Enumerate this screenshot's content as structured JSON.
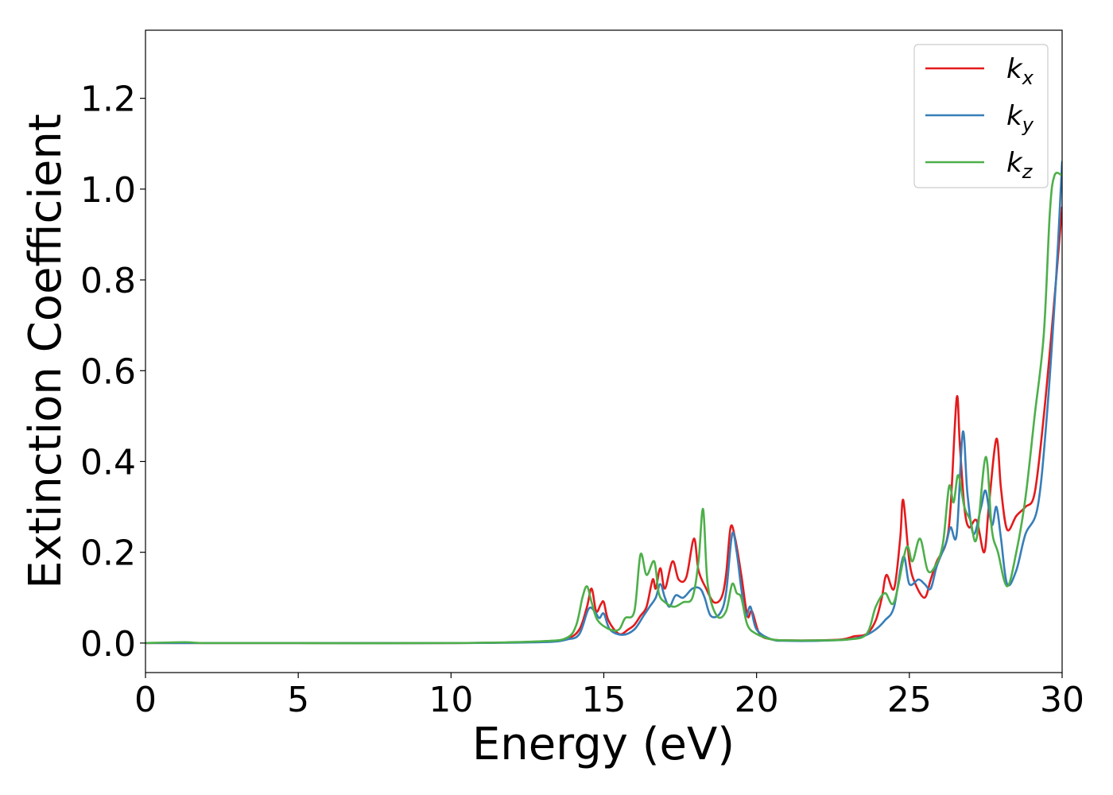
{
  "chart_data": {
    "type": "line",
    "title": "",
    "xlabel": "Energy (eV)",
    "ylabel": "Extinction Coefficient",
    "xlim": [
      0,
      30
    ],
    "ylim": [
      -0.065,
      1.35
    ],
    "xticks": [
      0,
      5,
      10,
      15,
      20,
      25,
      30
    ],
    "xtick_labels": [
      "0",
      "5",
      "10",
      "15",
      "20",
      "25",
      "30"
    ],
    "yticks": [
      0.0,
      0.2,
      0.4,
      0.6,
      0.8,
      1.0,
      1.2
    ],
    "ytick_labels": [
      "0.0",
      "0.2",
      "0.4",
      "0.6",
      "0.8",
      "1.0",
      "1.2"
    ],
    "grid": false,
    "legend_position": "top-right",
    "series": [
      {
        "name": "k",
        "subscript": "x",
        "color": "#e41a1c",
        "points": [
          [
            0,
            0
          ],
          [
            5,
            0
          ],
          [
            10,
            0
          ],
          [
            13,
            0.003
          ],
          [
            13.8,
            0.01
          ],
          [
            14.2,
            0.03
          ],
          [
            14.45,
            0.08
          ],
          [
            14.6,
            0.12
          ],
          [
            14.75,
            0.07
          ],
          [
            14.9,
            0.085
          ],
          [
            15.0,
            0.09
          ],
          [
            15.15,
            0.05
          ],
          [
            15.5,
            0.02
          ],
          [
            15.8,
            0.03
          ],
          [
            16.0,
            0.04
          ],
          [
            16.2,
            0.06
          ],
          [
            16.4,
            0.08
          ],
          [
            16.6,
            0.14
          ],
          [
            16.7,
            0.12
          ],
          [
            16.85,
            0.165
          ],
          [
            17.0,
            0.12
          ],
          [
            17.25,
            0.18
          ],
          [
            17.45,
            0.14
          ],
          [
            17.7,
            0.145
          ],
          [
            17.95,
            0.23
          ],
          [
            18.1,
            0.16
          ],
          [
            18.35,
            0.12
          ],
          [
            18.6,
            0.09
          ],
          [
            18.85,
            0.1
          ],
          [
            19.0,
            0.15
          ],
          [
            19.15,
            0.255
          ],
          [
            19.3,
            0.23
          ],
          [
            19.5,
            0.15
          ],
          [
            19.7,
            0.06
          ],
          [
            19.85,
            0.07
          ],
          [
            20.1,
            0.02
          ],
          [
            20.5,
            0.008
          ],
          [
            21.0,
            0.006
          ],
          [
            22.0,
            0.006
          ],
          [
            22.8,
            0.008
          ],
          [
            23.2,
            0.015
          ],
          [
            23.6,
            0.02
          ],
          [
            23.9,
            0.05
          ],
          [
            24.1,
            0.1
          ],
          [
            24.25,
            0.15
          ],
          [
            24.5,
            0.12
          ],
          [
            24.7,
            0.23
          ],
          [
            24.8,
            0.315
          ],
          [
            25.0,
            0.18
          ],
          [
            25.2,
            0.13
          ],
          [
            25.5,
            0.1
          ],
          [
            25.7,
            0.14
          ],
          [
            25.9,
            0.18
          ],
          [
            26.2,
            0.22
          ],
          [
            26.35,
            0.3
          ],
          [
            26.55,
            0.54
          ],
          [
            26.65,
            0.44
          ],
          [
            26.8,
            0.3
          ],
          [
            26.95,
            0.255
          ],
          [
            27.2,
            0.27
          ],
          [
            27.45,
            0.2
          ],
          [
            27.6,
            0.3
          ],
          [
            27.85,
            0.45
          ],
          [
            28.0,
            0.34
          ],
          [
            28.2,
            0.25
          ],
          [
            28.5,
            0.28
          ],
          [
            28.8,
            0.3
          ],
          [
            29.1,
            0.33
          ],
          [
            29.4,
            0.5
          ],
          [
            29.7,
            0.72
          ],
          [
            30.0,
            0.96
          ]
        ]
      },
      {
        "name": "k",
        "subscript": "y",
        "color": "#377eb8",
        "points": [
          [
            0,
            0
          ],
          [
            5,
            0
          ],
          [
            10,
            0
          ],
          [
            13,
            0.002
          ],
          [
            13.8,
            0.008
          ],
          [
            14.2,
            0.02
          ],
          [
            14.5,
            0.075
          ],
          [
            14.7,
            0.07
          ],
          [
            14.85,
            0.055
          ],
          [
            15.0,
            0.065
          ],
          [
            15.2,
            0.03
          ],
          [
            15.6,
            0.018
          ],
          [
            16.0,
            0.03
          ],
          [
            16.3,
            0.06
          ],
          [
            16.5,
            0.08
          ],
          [
            16.7,
            0.1
          ],
          [
            16.85,
            0.13
          ],
          [
            17.0,
            0.1
          ],
          [
            17.15,
            0.08
          ],
          [
            17.35,
            0.105
          ],
          [
            17.6,
            0.1
          ],
          [
            17.9,
            0.12
          ],
          [
            18.15,
            0.12
          ],
          [
            18.3,
            0.1
          ],
          [
            18.5,
            0.06
          ],
          [
            18.8,
            0.065
          ],
          [
            19.0,
            0.11
          ],
          [
            19.2,
            0.24
          ],
          [
            19.35,
            0.2
          ],
          [
            19.5,
            0.12
          ],
          [
            19.65,
            0.06
          ],
          [
            19.8,
            0.08
          ],
          [
            20.0,
            0.03
          ],
          [
            20.5,
            0.008
          ],
          [
            21.0,
            0.005
          ],
          [
            22.0,
            0.005
          ],
          [
            23.0,
            0.008
          ],
          [
            23.5,
            0.015
          ],
          [
            23.9,
            0.03
          ],
          [
            24.2,
            0.05
          ],
          [
            24.5,
            0.08
          ],
          [
            24.8,
            0.19
          ],
          [
            25.0,
            0.13
          ],
          [
            25.3,
            0.14
          ],
          [
            25.5,
            0.13
          ],
          [
            25.7,
            0.12
          ],
          [
            25.9,
            0.17
          ],
          [
            26.2,
            0.22
          ],
          [
            26.35,
            0.255
          ],
          [
            26.55,
            0.24
          ],
          [
            26.75,
            0.465
          ],
          [
            26.9,
            0.33
          ],
          [
            27.1,
            0.24
          ],
          [
            27.35,
            0.3
          ],
          [
            27.5,
            0.335
          ],
          [
            27.7,
            0.26
          ],
          [
            27.85,
            0.3
          ],
          [
            28.0,
            0.23
          ],
          [
            28.2,
            0.13
          ],
          [
            28.5,
            0.16
          ],
          [
            28.8,
            0.24
          ],
          [
            29.2,
            0.3
          ],
          [
            29.5,
            0.5
          ],
          [
            29.8,
            0.8
          ],
          [
            30.0,
            1.06
          ]
        ]
      },
      {
        "name": "k",
        "subscript": "z",
        "color": "#4daf4a",
        "points": [
          [
            0,
            0
          ],
          [
            1.3,
            0.002
          ],
          [
            2,
            0
          ],
          [
            5,
            0
          ],
          [
            10,
            0
          ],
          [
            13,
            0.004
          ],
          [
            13.8,
            0.012
          ],
          [
            14.1,
            0.04
          ],
          [
            14.3,
            0.1
          ],
          [
            14.45,
            0.125
          ],
          [
            14.6,
            0.09
          ],
          [
            14.8,
            0.05
          ],
          [
            15.2,
            0.03
          ],
          [
            15.5,
            0.03
          ],
          [
            15.7,
            0.055
          ],
          [
            16.0,
            0.07
          ],
          [
            16.2,
            0.195
          ],
          [
            16.4,
            0.15
          ],
          [
            16.65,
            0.18
          ],
          [
            16.8,
            0.11
          ],
          [
            17.0,
            0.09
          ],
          [
            17.3,
            0.08
          ],
          [
            17.6,
            0.09
          ],
          [
            17.9,
            0.1
          ],
          [
            18.1,
            0.18
          ],
          [
            18.25,
            0.295
          ],
          [
            18.4,
            0.13
          ],
          [
            18.7,
            0.06
          ],
          [
            19.0,
            0.07
          ],
          [
            19.2,
            0.13
          ],
          [
            19.35,
            0.11
          ],
          [
            19.5,
            0.1
          ],
          [
            19.7,
            0.04
          ],
          [
            20.0,
            0.02
          ],
          [
            20.5,
            0.008
          ],
          [
            21.0,
            0.006
          ],
          [
            22.0,
            0.006
          ],
          [
            23.0,
            0.008
          ],
          [
            23.6,
            0.02
          ],
          [
            23.9,
            0.08
          ],
          [
            24.2,
            0.11
          ],
          [
            24.5,
            0.09
          ],
          [
            24.9,
            0.21
          ],
          [
            25.1,
            0.18
          ],
          [
            25.35,
            0.23
          ],
          [
            25.6,
            0.16
          ],
          [
            25.85,
            0.17
          ],
          [
            26.1,
            0.22
          ],
          [
            26.3,
            0.345
          ],
          [
            26.45,
            0.31
          ],
          [
            26.6,
            0.37
          ],
          [
            26.8,
            0.3
          ],
          [
            27.0,
            0.27
          ],
          [
            27.2,
            0.23
          ],
          [
            27.5,
            0.41
          ],
          [
            27.7,
            0.25
          ],
          [
            27.9,
            0.2
          ],
          [
            28.2,
            0.125
          ],
          [
            28.5,
            0.2
          ],
          [
            28.8,
            0.32
          ],
          [
            29.1,
            0.5
          ],
          [
            29.4,
            0.68
          ],
          [
            29.6,
            0.95
          ],
          [
            29.75,
            1.03
          ],
          [
            30.0,
            1.03
          ]
        ]
      }
    ]
  }
}
